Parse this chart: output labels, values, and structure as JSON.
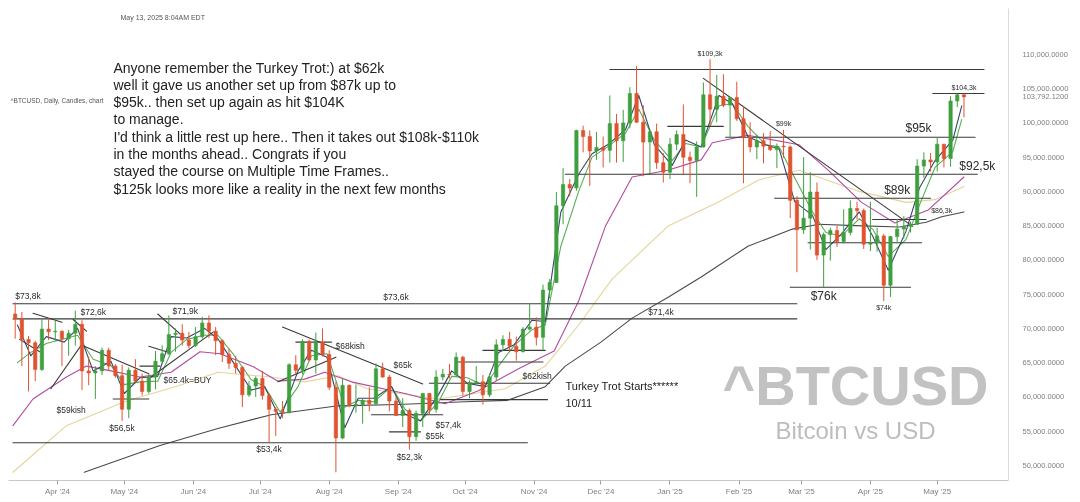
{
  "chart_data": {
    "type": "candlestick",
    "title": "^BTCUSD",
    "subtitle": "Bitcoin vs USD",
    "xlim": [
      "2024-03-10",
      "2025-06-02"
    ],
    "ylim": [
      47800,
      116700
    ],
    "xticks": [
      {
        "value": "2024-04-01",
        "label": "Apr '24"
      },
      {
        "value": "2024-05-01",
        "label": "May '24"
      },
      {
        "value": "2024-06-01",
        "label": "Jun '24"
      },
      {
        "value": "2024-07-01",
        "label": "Jul '24"
      },
      {
        "value": "2024-08-01",
        "label": "Aug '24"
      },
      {
        "value": "2024-09-01",
        "label": "Sep '24"
      },
      {
        "value": "2024-10-01",
        "label": "Oct '24"
      },
      {
        "value": "2024-11-01",
        "label": "Nov '24"
      },
      {
        "value": "2024-12-01",
        "label": "Dec '24"
      },
      {
        "value": "2025-01-01",
        "label": "Jan '25"
      },
      {
        "value": "2025-02-01",
        "label": "Feb '25"
      },
      {
        "value": "2025-03-01",
        "label": "Mar '25"
      },
      {
        "value": "2025-04-01",
        "label": "Apr '25"
      },
      {
        "value": "2025-05-01",
        "label": "May '25"
      }
    ],
    "yticks": [
      {
        "value": 50000,
        "label": "50,000.0000"
      },
      {
        "value": 55000,
        "label": "55,000.0000"
      },
      {
        "value": 60000,
        "label": "60,000.0000"
      },
      {
        "value": 65000,
        "label": "65,000.0000"
      },
      {
        "value": 70000,
        "label": "70,000.0000"
      },
      {
        "value": 75000,
        "label": "75,000.0000"
      },
      {
        "value": 80000,
        "label": "80,000.0000"
      },
      {
        "value": 85000,
        "label": "85,000.0000"
      },
      {
        "value": 90000,
        "label": "90,000.0000"
      },
      {
        "value": 95000,
        "label": "95,000.0000"
      },
      {
        "value": 100000,
        "label": "100,000.0000"
      },
      {
        "value": 103792.12,
        "label": "103,792.1200"
      },
      {
        "value": 105000,
        "label": "105,000.0000"
      },
      {
        "value": 110000,
        "label": "110,000.0000"
      }
    ],
    "x": [
      "2024-03-13",
      "2024-03-16",
      "2024-03-19",
      "2024-03-22",
      "2024-03-25",
      "2024-03-28",
      "2024-03-31",
      "2024-04-03",
      "2024-04-06",
      "2024-04-09",
      "2024-04-12",
      "2024-04-15",
      "2024-04-18",
      "2024-04-21",
      "2024-04-24",
      "2024-04-27",
      "2024-04-30",
      "2024-05-03",
      "2024-05-06",
      "2024-05-09",
      "2024-05-12",
      "2024-05-15",
      "2024-05-18",
      "2024-05-21",
      "2024-05-24",
      "2024-05-27",
      "2024-05-30",
      "2024-06-02",
      "2024-06-05",
      "2024-06-08",
      "2024-06-11",
      "2024-06-14",
      "2024-06-17",
      "2024-06-20",
      "2024-06-23",
      "2024-06-26",
      "2024-06-29",
      "2024-07-02",
      "2024-07-05",
      "2024-07-08",
      "2024-07-11",
      "2024-07-14",
      "2024-07-17",
      "2024-07-20",
      "2024-07-23",
      "2024-07-26",
      "2024-07-29",
      "2024-08-01",
      "2024-08-04",
      "2024-08-07",
      "2024-08-10",
      "2024-08-13",
      "2024-08-16",
      "2024-08-19",
      "2024-08-22",
      "2024-08-25",
      "2024-08-28",
      "2024-08-31",
      "2024-09-03",
      "2024-09-06",
      "2024-09-09",
      "2024-09-12",
      "2024-09-15",
      "2024-09-18",
      "2024-09-21",
      "2024-09-24",
      "2024-09-27",
      "2024-09-30",
      "2024-10-03",
      "2024-10-06",
      "2024-10-09",
      "2024-10-12",
      "2024-10-15",
      "2024-10-18",
      "2024-10-21",
      "2024-10-24",
      "2024-10-27",
      "2024-10-30",
      "2024-11-02",
      "2024-11-05",
      "2024-11-08",
      "2024-11-11",
      "2024-11-14",
      "2024-11-17",
      "2024-11-20",
      "2024-11-23",
      "2024-11-26",
      "2024-11-29",
      "2024-12-02",
      "2024-12-05",
      "2024-12-08",
      "2024-12-11",
      "2024-12-14",
      "2024-12-17",
      "2024-12-20",
      "2024-12-23",
      "2024-12-26",
      "2024-12-29",
      "2025-01-01",
      "2025-01-04",
      "2025-01-07",
      "2025-01-10",
      "2025-01-13",
      "2025-01-16",
      "2025-01-19",
      "2025-01-22",
      "2025-01-25",
      "2025-01-28",
      "2025-01-31",
      "2025-02-03",
      "2025-02-06",
      "2025-02-09",
      "2025-02-12",
      "2025-02-15",
      "2025-02-18",
      "2025-02-21",
      "2025-02-24",
      "2025-02-27",
      "2025-03-02",
      "2025-03-05",
      "2025-03-08",
      "2025-03-11",
      "2025-03-14",
      "2025-03-17",
      "2025-03-20",
      "2025-03-23",
      "2025-03-26",
      "2025-03-29",
      "2025-04-01",
      "2025-04-04",
      "2025-04-07",
      "2025-04-10",
      "2025-04-13",
      "2025-04-16",
      "2025-04-19",
      "2025-04-22",
      "2025-04-25",
      "2025-04-28",
      "2025-05-01",
      "2025-05-04",
      "2025-05-07",
      "2025-05-10",
      "2025-05-13"
    ],
    "ohlc": [
      [
        72100,
        73800,
        68500,
        71400
      ],
      [
        71400,
        72400,
        64500,
        68400
      ],
      [
        68400,
        68900,
        60800,
        67900
      ],
      [
        67900,
        68200,
        62300,
        64000
      ],
      [
        64000,
        71500,
        63800,
        69900
      ],
      [
        69900,
        71500,
        68300,
        69500
      ],
      [
        69500,
        71400,
        68200,
        69600
      ],
      [
        69600,
        69700,
        64500,
        68500
      ],
      [
        68500,
        69800,
        66000,
        69300
      ],
      [
        69300,
        72600,
        67500,
        70600
      ],
      [
        70600,
        71200,
        61000,
        63800
      ],
      [
        63800,
        65900,
        61700,
        63500
      ],
      [
        63500,
        64500,
        59700,
        63800
      ],
      [
        63800,
        67200,
        63200,
        66800
      ],
      [
        66800,
        67200,
        63800,
        64500
      ],
      [
        64500,
        64800,
        62800,
        63100
      ],
      [
        63100,
        64700,
        56500,
        58200
      ],
      [
        58200,
        64300,
        56900,
        63900
      ],
      [
        63900,
        65500,
        62100,
        62300
      ],
      [
        62300,
        63400,
        60200,
        60800
      ],
      [
        60800,
        63400,
        60500,
        62900
      ],
      [
        62900,
        66700,
        61100,
        65200
      ],
      [
        65200,
        67500,
        65000,
        66300
      ],
      [
        66300,
        71900,
        66100,
        69100
      ],
      [
        69100,
        70000,
        66600,
        69300
      ],
      [
        69300,
        70600,
        67500,
        68300
      ],
      [
        68300,
        69500,
        67100,
        67500
      ],
      [
        67500,
        70200,
        67300,
        68800
      ],
      [
        68800,
        71700,
        68500,
        70800
      ],
      [
        70800,
        71900,
        68600,
        69600
      ],
      [
        69600,
        70200,
        66100,
        68200
      ],
      [
        68200,
        68400,
        65100,
        66200
      ],
      [
        66200,
        67000,
        64100,
        64900
      ],
      [
        64900,
        66000,
        63400,
        64300
      ],
      [
        64300,
        64500,
        58500,
        60300
      ],
      [
        60300,
        62300,
        60000,
        61600
      ],
      [
        61600,
        63000,
        60000,
        62700
      ],
      [
        62700,
        63800,
        59600,
        60200
      ],
      [
        60200,
        60500,
        53400,
        58200
      ],
      [
        58200,
        58500,
        54300,
        57900
      ],
      [
        57900,
        59400,
        56900,
        57700
      ],
      [
        57700,
        64900,
        57600,
        64700
      ],
      [
        64700,
        66100,
        63300,
        63900
      ],
      [
        63900,
        68400,
        63300,
        68100
      ],
      [
        68100,
        68400,
        65200,
        65400
      ],
      [
        65400,
        69400,
        63400,
        68000
      ],
      [
        68000,
        70000,
        65900,
        66200
      ],
      [
        66200,
        66800,
        61000,
        61400
      ],
      [
        61400,
        62200,
        49000,
        54000
      ],
      [
        54000,
        62700,
        53800,
        61700
      ],
      [
        61700,
        61800,
        58500,
        58700
      ],
      [
        58700,
        61800,
        57700,
        58900
      ],
      [
        58900,
        59800,
        56100,
        59500
      ],
      [
        59500,
        61400,
        57900,
        59000
      ],
      [
        59000,
        64900,
        58800,
        64100
      ],
      [
        64100,
        65000,
        62800,
        62900
      ],
      [
        62900,
        63200,
        57900,
        59400
      ],
      [
        59400,
        60000,
        57200,
        57300
      ],
      [
        57300,
        59800,
        55600,
        58000
      ],
      [
        58000,
        58300,
        52300,
        54200
      ],
      [
        54200,
        58000,
        53600,
        57600
      ],
      [
        57600,
        60600,
        55600,
        60500
      ],
      [
        60500,
        60600,
        57500,
        58200
      ],
      [
        58200,
        63900,
        57700,
        62900
      ],
      [
        62900,
        64100,
        62400,
        63300
      ],
      [
        63300,
        64800,
        62700,
        63200
      ],
      [
        63200,
        66500,
        62900,
        65800
      ],
      [
        65800,
        66000,
        60200,
        60800
      ],
      [
        60800,
        62400,
        59800,
        62100
      ],
      [
        62100,
        64500,
        61800,
        62200
      ],
      [
        62200,
        63200,
        58900,
        60300
      ],
      [
        60300,
        63400,
        60000,
        62900
      ],
      [
        62900,
        68400,
        62400,
        67600
      ],
      [
        67600,
        69000,
        66700,
        68400
      ],
      [
        68400,
        69500,
        66600,
        67400
      ],
      [
        67400,
        68800,
        65300,
        66600
      ],
      [
        66600,
        70200,
        66500,
        69900
      ],
      [
        69900,
        73600,
        69700,
        70200
      ],
      [
        70200,
        71600,
        67500,
        68700
      ],
      [
        68700,
        76400,
        66800,
        75600
      ],
      [
        75600,
        77200,
        74400,
        76700
      ],
      [
        76700,
        89900,
        76600,
        87900
      ],
      [
        87900,
        93400,
        85200,
        91000
      ],
      [
        91000,
        91800,
        89300,
        90500
      ],
      [
        90500,
        99000,
        90100,
        98900
      ],
      [
        98900,
        99600,
        95700,
        98000
      ],
      [
        98000,
        98900,
        90800,
        95900
      ],
      [
        95900,
        98700,
        94600,
        96400
      ],
      [
        96400,
        98000,
        93500,
        96000
      ],
      [
        96000,
        104000,
        94200,
        99900
      ],
      [
        99900,
        101300,
        94200,
        97400
      ],
      [
        97400,
        101900,
        94300,
        100000
      ],
      [
        100000,
        105200,
        99200,
        104300
      ],
      [
        104300,
        108300,
        100000,
        100100
      ],
      [
        100100,
        102600,
        92200,
        97200
      ],
      [
        97200,
        99000,
        92500,
        98700
      ],
      [
        98700,
        99900,
        93300,
        94200
      ],
      [
        94200,
        95600,
        91300,
        92800
      ],
      [
        92800,
        97800,
        91800,
        96900
      ],
      [
        96900,
        98900,
        96000,
        98300
      ],
      [
        98300,
        102700,
        92500,
        95000
      ],
      [
        95000,
        95800,
        91200,
        94500
      ],
      [
        94500,
        97300,
        89200,
        96500
      ],
      [
        96500,
        105900,
        96400,
        104100
      ],
      [
        104100,
        109300,
        99500,
        102000
      ],
      [
        102000,
        107000,
        100100,
        103900
      ],
      [
        103900,
        107100,
        102300,
        102600
      ],
      [
        102600,
        103800,
        97800,
        103700
      ],
      [
        103700,
        106000,
        100300,
        100600
      ],
      [
        100600,
        102500,
        91200,
        97900
      ],
      [
        97900,
        100100,
        95700,
        96500
      ],
      [
        96500,
        98300,
        94700,
        97400
      ],
      [
        97400,
        98500,
        94100,
        96600
      ],
      [
        96600,
        98800,
        95900,
        96100
      ],
      [
        96100,
        97000,
        93400,
        96600
      ],
      [
        96600,
        99000,
        94900,
        96500
      ],
      [
        96500,
        96700,
        86100,
        88700
      ],
      [
        88700,
        89300,
        78200,
        84400
      ],
      [
        84400,
        95000,
        83800,
        86100
      ],
      [
        86100,
        92800,
        81500,
        89900
      ],
      [
        89900,
        91300,
        80000,
        80700
      ],
      [
        80700,
        84000,
        76000,
        83700
      ],
      [
        83700,
        84700,
        79900,
        84300
      ],
      [
        84300,
        85000,
        81900,
        82700
      ],
      [
        82700,
        87400,
        82400,
        84000
      ],
      [
        84000,
        88700,
        83600,
        87500
      ],
      [
        87500,
        88500,
        85900,
        87200
      ],
      [
        87200,
        87500,
        81600,
        82300
      ],
      [
        82300,
        88500,
        81300,
        82500
      ],
      [
        82500,
        84700,
        81200,
        83500
      ],
      [
        83500,
        83800,
        74000,
        76300
      ],
      [
        76300,
        83500,
        74600,
        83400
      ],
      [
        83400,
        86000,
        82600,
        84500
      ],
      [
        84500,
        86400,
        83100,
        84900
      ],
      [
        84900,
        85600,
        84000,
        85200
      ],
      [
        85200,
        94700,
        85100,
        93700
      ],
      [
        93700,
        95700,
        92000,
        94600
      ],
      [
        94600,
        95600,
        92900,
        94300
      ],
      [
        94300,
        97900,
        92900,
        96900
      ],
      [
        96900,
        96900,
        93500,
        94800
      ],
      [
        94800,
        103900,
        93600,
        103200
      ],
      [
        103200,
        104200,
        102300,
        104100
      ],
      [
        104100,
        104300,
        100800,
        103792.12
      ]
    ],
    "series": [
      {
        "type": "line",
        "color": "#4a4a4a",
        "x": [
          "2024-04-13",
          "2024-05-17",
          "2024-06-12",
          "2024-07-06",
          "2024-08-05",
          "2024-09-01",
          "2024-10-01",
          "2024-10-20",
          "2024-11-06",
          "2024-11-15",
          "2024-12-01",
          "2024-12-15",
          "2024-12-31",
          "2025-01-15",
          "2025-02-05",
          "2025-02-25",
          "2025-03-09",
          "2025-03-25",
          "2025-04-14",
          "2025-04-26",
          "2025-05-03",
          "2025-05-13"
        ],
        "values": [
          49000,
          52900,
          55400,
          57400,
          58700,
          58900,
          59300,
          59500,
          61500,
          64500,
          68000,
          71500,
          74500,
          77500,
          82000,
          84500,
          85200,
          85000,
          84800,
          85500,
          86300,
          87000
        ]
      },
      {
        "type": "line",
        "color": "#e3d59a",
        "x": [
          "2024-03-12",
          "2024-04-05",
          "2024-05-01",
          "2024-05-25",
          "2024-06-12",
          "2024-07-06",
          "2024-07-21",
          "2024-08-05",
          "2024-08-18",
          "2024-09-19",
          "2024-10-19",
          "2024-11-06",
          "2024-11-21",
          "2024-12-06",
          "2024-12-31",
          "2025-01-23",
          "2025-02-10",
          "2025-02-28",
          "2025-03-27",
          "2025-04-17",
          "2025-04-30",
          "2025-05-13"
        ],
        "values": [
          49000,
          55800,
          59300,
          61600,
          63600,
          62900,
          62200,
          63100,
          61200,
          59700,
          61200,
          64500,
          70500,
          77200,
          84900,
          88500,
          91700,
          93100,
          90000,
          88400,
          88800,
          90700
        ]
      },
      {
        "type": "line",
        "color": "#b44a9e",
        "x": [
          "2024-03-12",
          "2024-03-21",
          "2024-04-05",
          "2024-04-14",
          "2024-04-25",
          "2024-05-08",
          "2024-05-22",
          "2024-06-04",
          "2024-06-13",
          "2024-06-28",
          "2024-07-09",
          "2024-07-21",
          "2024-07-30",
          "2024-08-11",
          "2024-09-04",
          "2024-09-22",
          "2024-10-07",
          "2024-10-25",
          "2024-11-10",
          "2024-11-21",
          "2024-12-03",
          "2024-12-15",
          "2024-12-31",
          "2025-01-15",
          "2025-01-20",
          "2025-02-05",
          "2025-02-28",
          "2025-03-13",
          "2025-03-28",
          "2025-04-12",
          "2025-04-27",
          "2025-05-13"
        ],
        "values": [
          55800,
          59700,
          62900,
          64500,
          63800,
          62900,
          63600,
          66600,
          66300,
          64400,
          62300,
          62600,
          63600,
          62200,
          60500,
          59000,
          60900,
          64100,
          66700,
          74000,
          84900,
          92100,
          93100,
          94600,
          97100,
          98200,
          96800,
          93100,
          88400,
          85400,
          87300,
          92100
        ]
      },
      {
        "type": "line",
        "color": "#55b055",
        "x": [
          "2024-03-14",
          "2024-03-20",
          "2024-03-27",
          "2024-04-04",
          "2024-04-10",
          "2024-04-17",
          "2024-04-25",
          "2024-05-01",
          "2024-05-08",
          "2024-05-16",
          "2024-05-22",
          "2024-05-29",
          "2024-06-06",
          "2024-06-12",
          "2024-06-19",
          "2024-06-27",
          "2024-07-03",
          "2024-07-10",
          "2024-07-18",
          "2024-07-24",
          "2024-07-31",
          "2024-08-08",
          "2024-08-14",
          "2024-08-21",
          "2024-08-29",
          "2024-09-04",
          "2024-09-11",
          "2024-09-19",
          "2024-09-25",
          "2024-10-02",
          "2024-10-10",
          "2024-10-16",
          "2024-10-23",
          "2024-10-31",
          "2024-11-06",
          "2024-11-13",
          "2024-11-21",
          "2024-11-27",
          "2024-12-04",
          "2024-12-12",
          "2024-12-18",
          "2024-12-25",
          "2025-01-02",
          "2025-01-08",
          "2025-01-15",
          "2025-01-23",
          "2025-01-29",
          "2025-02-05",
          "2025-02-13",
          "2025-02-19",
          "2025-02-26",
          "2025-03-06",
          "2025-03-12",
          "2025-03-19",
          "2025-03-27",
          "2025-04-02",
          "2025-04-09",
          "2025-04-17",
          "2025-04-23",
          "2025-04-30",
          "2025-05-08",
          "2025-05-12"
        ],
        "values": [
          65000,
          66500,
          67800,
          68500,
          69000,
          65500,
          64600,
          61800,
          62200,
          62300,
          66500,
          68400,
          69000,
          69000,
          66200,
          62500,
          61500,
          57800,
          61500,
          66000,
          66300,
          58500,
          59500,
          59300,
          61500,
          58200,
          56500,
          59200,
          63000,
          62800,
          61600,
          64500,
          67500,
          69800,
          70500,
          82000,
          90000,
          95000,
          96500,
          98500,
          102000,
          97500,
          94500,
          97000,
          96500,
          102500,
          102800,
          99500,
          96800,
          96500,
          92000,
          87000,
          84000,
          83500,
          86000,
          84500,
          80500,
          83000,
          88000,
          93500,
          95800,
          100500
        ]
      },
      {
        "type": "line",
        "color": "#34466a",
        "x": [
          "2024-03-14",
          "2024-03-20",
          "2024-03-27",
          "2024-04-04",
          "2024-04-10",
          "2024-04-17",
          "2024-04-25",
          "2024-05-01",
          "2024-05-08",
          "2024-05-16",
          "2024-05-22",
          "2024-05-29",
          "2024-06-06",
          "2024-06-12",
          "2024-06-19",
          "2024-06-27",
          "2024-07-03",
          "2024-07-10",
          "2024-07-18",
          "2024-07-24",
          "2024-07-31",
          "2024-08-08",
          "2024-08-14",
          "2024-08-21",
          "2024-08-29",
          "2024-09-04",
          "2024-09-11",
          "2024-09-19",
          "2024-09-25",
          "2024-10-02",
          "2024-10-10",
          "2024-10-16",
          "2024-10-23",
          "2024-10-31",
          "2024-11-06",
          "2024-11-13",
          "2024-11-21",
          "2024-11-27",
          "2024-12-04",
          "2024-12-12",
          "2024-12-18",
          "2024-12-25",
          "2025-01-02",
          "2025-01-08",
          "2025-01-15",
          "2025-01-23",
          "2025-01-29",
          "2025-02-05",
          "2025-02-13",
          "2025-02-19",
          "2025-02-26",
          "2025-03-06",
          "2025-03-12",
          "2025-03-19",
          "2025-03-27",
          "2025-04-02",
          "2025-04-09",
          "2025-04-17",
          "2025-04-23",
          "2025-04-30",
          "2025-05-08",
          "2025-05-12"
        ],
        "values": [
          70500,
          66000,
          68800,
          68000,
          70000,
          63800,
          65200,
          60500,
          62800,
          63000,
          68800,
          68600,
          70000,
          68500,
          65000,
          61000,
          61500,
          56800,
          63800,
          66800,
          65800,
          55500,
          59800,
          59800,
          61500,
          57500,
          56500,
          60300,
          63800,
          62000,
          61500,
          66500,
          67600,
          71200,
          71000,
          87000,
          92500,
          95500,
          96800,
          99000,
          104000,
          96800,
          93800,
          97500,
          96500,
          104000,
          102800,
          98000,
          96800,
          96200,
          88500,
          86500,
          81500,
          83800,
          87000,
          83500,
          78500,
          84200,
          90500,
          94500,
          97500,
          102500
        ]
      },
      {
        "type": "line",
        "color": "#3a3a3a",
        "x": [
          "2024-03-12",
          "2025-02-27"
        ],
        "values": [
          73600,
          73600
        ]
      },
      {
        "type": "line",
        "color": "#3a3a3a",
        "x": [
          "2024-03-12",
          "2025-02-27"
        ],
        "values": [
          71400,
          71400
        ]
      },
      {
        "type": "line",
        "color": "#3a3a3a",
        "x": [
          "2024-03-12",
          "2024-10-29"
        ],
        "values": [
          53300,
          53300
        ]
      },
      {
        "type": "line",
        "color": "#3a3a3a",
        "x": [
          "2024-12-05",
          "2025-05-22"
        ],
        "values": [
          107800,
          107800
        ]
      },
      {
        "type": "line",
        "color": "#3a3a3a",
        "x": [
          "2025-04-29",
          "2025-05-22"
        ],
        "values": [
          104300,
          104300
        ]
      },
      {
        "type": "line",
        "color": "#3a3a3a",
        "x": [
          "2024-12-31",
          "2025-01-25"
        ],
        "values": [
          99500,
          99500
        ]
      },
      {
        "type": "line",
        "color": "#3a3a3a",
        "x": [
          "2025-01-26",
          "2025-05-18"
        ],
        "values": [
          97900,
          97900
        ]
      },
      {
        "type": "line",
        "color": "#3a3a3a",
        "x": [
          "2024-11-15",
          "2025-05-19"
        ],
        "values": [
          92500,
          92500
        ]
      },
      {
        "type": "line",
        "color": "#3a3a3a",
        "x": [
          "2025-02-17",
          "2025-04-28"
        ],
        "values": [
          89000,
          89000
        ]
      },
      {
        "type": "line",
        "color": "#3a3a3a",
        "x": [
          "2025-04-02",
          "2025-04-26"
        ],
        "values": [
          85900,
          85900
        ]
      },
      {
        "type": "line",
        "color": "#3a3a3a",
        "x": [
          "2025-03-04",
          "2025-04-24"
        ],
        "values": [
          82500,
          82500
        ]
      },
      {
        "type": "line",
        "color": "#3a3a3a",
        "x": [
          "2025-02-24",
          "2025-04-19"
        ],
        "values": [
          76000,
          76000
        ]
      },
      {
        "type": "line",
        "color": "#3a3a3a",
        "x": [
          "2025-01-16",
          "2025-04-20"
        ],
        "values": [
          106500,
          84900
        ]
      },
      {
        "type": "line",
        "color": "#3a3a3a",
        "x": [
          "2024-03-21",
          "2024-04-03"
        ],
        "values": [
          72200,
          70900
        ]
      },
      {
        "type": "line",
        "color": "#3a3a3a",
        "x": [
          "2024-04-08",
          "2024-04-14"
        ],
        "values": [
          71300,
          69600
        ]
      },
      {
        "type": "line",
        "color": "#3a3a3a",
        "x": [
          "2024-03-15",
          "2024-03-24"
        ],
        "values": [
          68400,
          66600
        ]
      },
      {
        "type": "line",
        "color": "#3a3a3a",
        "x": [
          "2024-03-29",
          "2024-04-12"
        ],
        "values": [
          61200,
          67700
        ]
      },
      {
        "type": "line",
        "color": "#3a3a3a",
        "x": [
          "2024-04-13",
          "2024-05-12"
        ],
        "values": [
          67400,
          63400
        ]
      },
      {
        "type": "line",
        "color": "#3a3a3a",
        "x": [
          "2024-04-26",
          "2024-05-12"
        ],
        "values": [
          59700,
          59700
        ]
      },
      {
        "type": "line",
        "color": "#3a3a3a",
        "x": [
          "2024-05-08",
          "2024-05-17"
        ],
        "values": [
          64500,
          64500
        ]
      },
      {
        "type": "line",
        "color": "#3a3a3a",
        "x": [
          "2024-05-12",
          "2024-05-20"
        ],
        "values": [
          67400,
          66600
        ]
      },
      {
        "type": "line",
        "color": "#3a3a3a",
        "x": [
          "2024-05-16",
          "2024-05-26"
        ],
        "values": [
          72100,
          69200
        ]
      },
      {
        "type": "line",
        "color": "#3a3a3a",
        "x": [
          "2024-05-13",
          "2024-06-10"
        ],
        "values": [
          62900,
          69500
        ]
      },
      {
        "type": "line",
        "color": "#3a3a3a",
        "x": [
          "2024-07-11",
          "2024-09-12"
        ],
        "values": [
          70200,
          61900
        ]
      },
      {
        "type": "line",
        "color": "#3a3a3a",
        "x": [
          "2024-07-17",
          "2024-08-02"
        ],
        "values": [
          68000,
          68000
        ]
      },
      {
        "type": "line",
        "color": "#3a3a3a",
        "x": [
          "2024-07-09",
          "2024-08-04"
        ],
        "values": [
          62200,
          65800
        ]
      },
      {
        "type": "line",
        "color": "#3a3a3a",
        "x": [
          "2024-09-15",
          "2024-11-08"
        ],
        "values": [
          62000,
          62000
        ]
      },
      {
        "type": "line",
        "color": "#3a3a3a",
        "x": [
          "2024-09-20",
          "2024-11-07"
        ],
        "values": [
          59600,
          59600
        ]
      },
      {
        "type": "line",
        "color": "#3a3a3a",
        "x": [
          "2024-09-27",
          "2024-11-05"
        ],
        "values": [
          65100,
          65100
        ]
      },
      {
        "type": "line",
        "color": "#3a3a3a",
        "x": [
          "2024-10-09",
          "2024-11-06"
        ],
        "values": [
          66800,
          66800
        ]
      },
      {
        "type": "line",
        "color": "#3a3a3a",
        "x": [
          "2024-08-20",
          "2024-09-21"
        ],
        "values": [
          57400,
          57400
        ]
      },
      {
        "type": "line",
        "color": "#3a3a3a",
        "x": [
          "2024-08-28",
          "2024-09-11"
        ],
        "values": [
          54900,
          54900
        ]
      }
    ],
    "annotations": [
      "May 13, 2025 8:04AM EDT",
      "^BTCUSD, Daily, Candles, chart",
      "Anyone remember the Turkey Trot:) at $62k\nwell it gave us another set up from $87k up to\n$95k.. then set up again as hit $104K\nto manage.\nI'd think a little rest up here.. Then it takes out $108k-$110k\nin the months ahead.. Congrats if you\nstayed the course on Multiple Time Frames..\n$125k looks more like a reality in the next few months",
      "Turkey Trot Starts******\n10/11",
      "$95k",
      "$65.4k=BUY",
      "$59kish",
      "$65k",
      "$57,4k",
      "$55k",
      "$68kish",
      "$72,6k",
      "$71,9k",
      "$62kish",
      {
        "text": "$73,8k",
        "x": "2024-03-13",
        "y": 73800
      },
      {
        "text": "$56,5k",
        "x": "2024-04-30",
        "y": 56500
      },
      {
        "text": "$53,4k",
        "x": "2024-07-05",
        "y": 53400
      },
      {
        "text": "$52,3k",
        "x": "2024-09-06",
        "y": 52300
      },
      {
        "text": "$73,6k",
        "x": "2024-08-31",
        "y": 73600
      },
      {
        "text": "$71,4k",
        "x": "2024-12-28",
        "y": 71400
      },
      {
        "text": "$109,3k",
        "x": "2025-01-19",
        "y": 109300
      },
      {
        "text": "$99k",
        "x": "2025-02-21",
        "y": 99000
      },
      {
        "text": "$104,3k",
        "x": "2025-05-13",
        "y": 104300
      },
      {
        "text": "$92,5k",
        "x": "2025-05-19",
        "y": 92500
      },
      {
        "text": "$89k",
        "x": "2025-04-13",
        "y": 89000
      },
      {
        "text": "$86,3k",
        "x": "2025-05-03",
        "y": 86300
      },
      {
        "text": "$76k",
        "x": "2025-03-11",
        "y": 76000
      },
      {
        "text": "$74k",
        "x": "2025-04-07",
        "y": 74000
      }
    ]
  }
}
